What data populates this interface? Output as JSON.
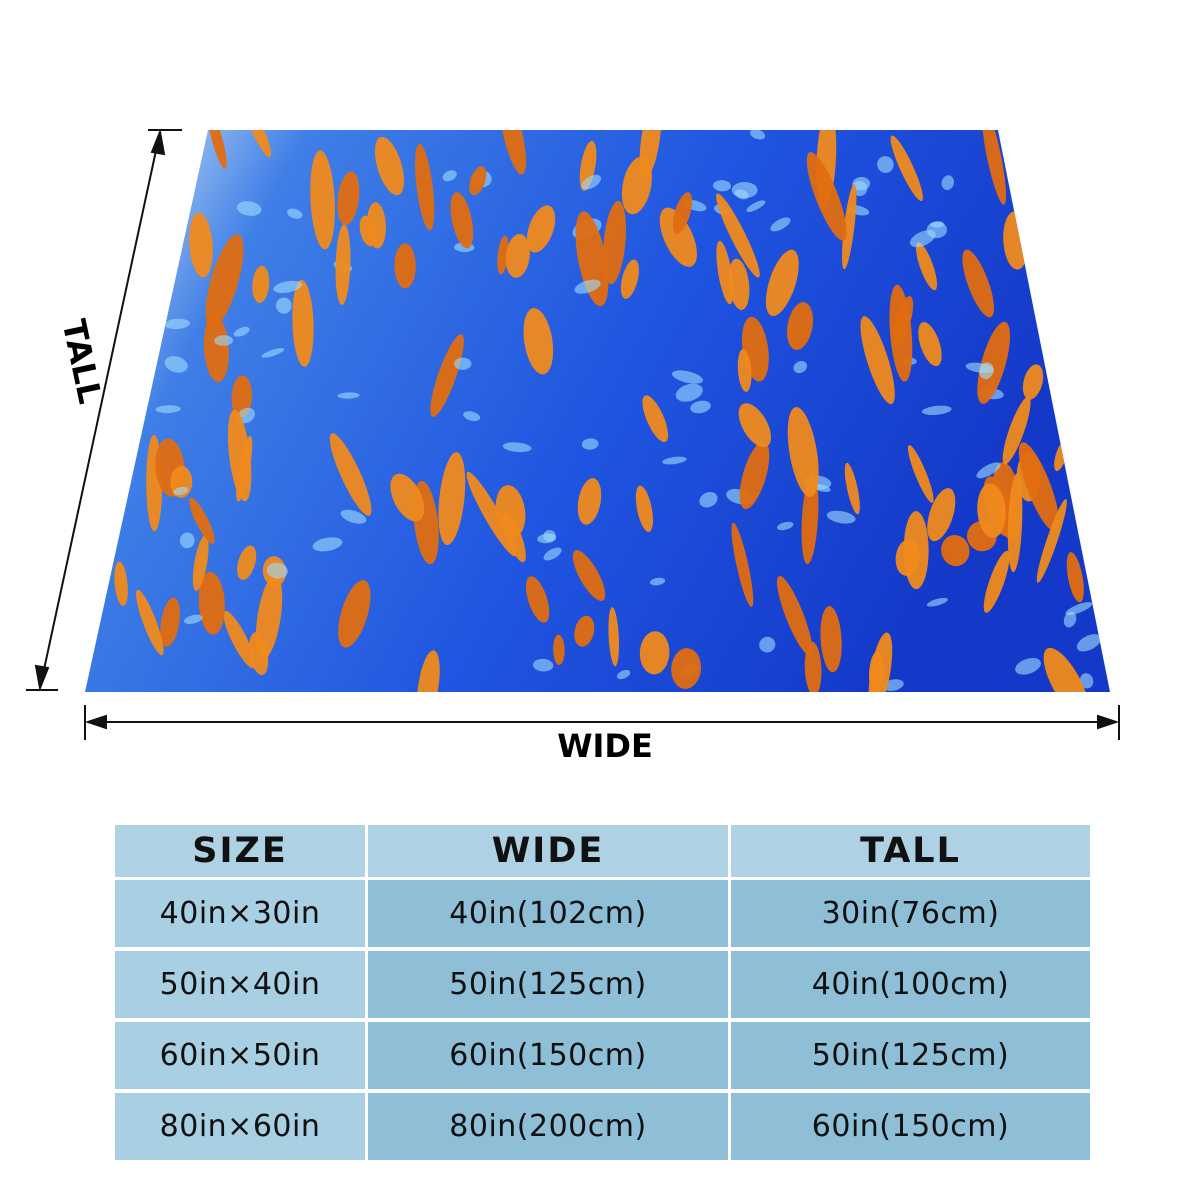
{
  "labels": {
    "tall": "TALL",
    "wide": "WIDE"
  },
  "table": {
    "header": [
      "SIZE",
      "WIDE",
      "TALL"
    ],
    "rows": [
      [
        "40in×30in",
        "40in(102cm)",
        "30in(76cm)"
      ],
      [
        "50in×40in",
        "50in(125cm)",
        "40in(100cm)"
      ],
      [
        "60in×50in",
        "60in(150cm)",
        "50in(125cm)"
      ],
      [
        "80in×60in",
        "80in(200cm)",
        "60in(150cm)"
      ]
    ]
  }
}
